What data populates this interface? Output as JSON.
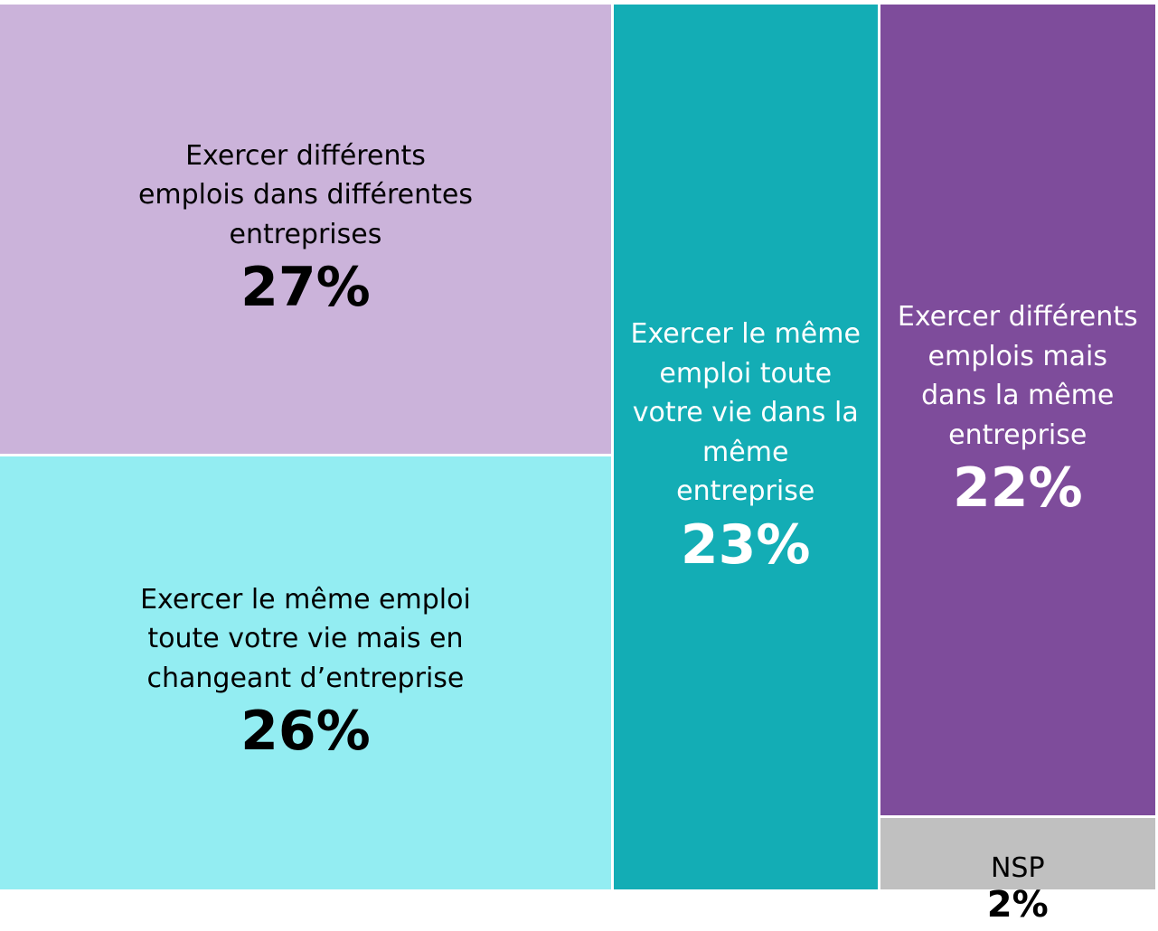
{
  "chart_data": {
    "type": "treemap",
    "categories": [
      "Exercer différents emplois dans différentes entreprises",
      "Exercer le même emploi toute votre vie mais en changeant d’entreprise",
      "Exercer le même emploi toute votre vie dans la même entreprise",
      "Exercer différents emplois mais dans la même entreprise",
      "NSP"
    ],
    "values": [
      27,
      26,
      23,
      22,
      2
    ],
    "value_labels": [
      "27%",
      "26%",
      "23%",
      "22%",
      "2%"
    ],
    "colors": [
      "#cbb3da",
      "#93edf2",
      "#13adb5",
      "#7e4c9b",
      "#c0c0c0"
    ]
  }
}
